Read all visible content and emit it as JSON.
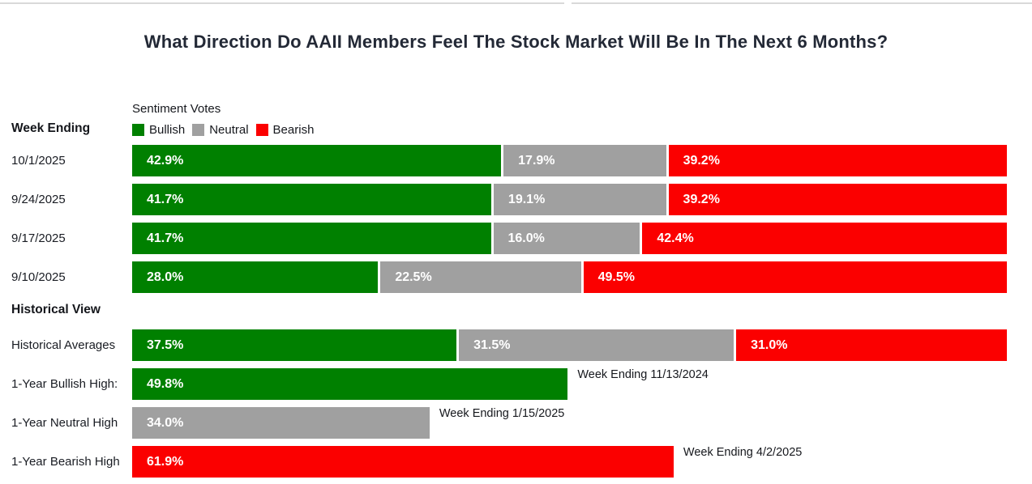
{
  "page": {
    "title": "What Direction Do AAII Members Feel The Stock Market Will Be In The Next 6 Months?"
  },
  "colors": {
    "bullish": "#008000",
    "neutral": "#a0a0a0",
    "bearish": "#fb0000"
  },
  "chart_data": {
    "type": "bar",
    "orientation": "horizontal-stacked",
    "xlim": [
      0,
      100
    ],
    "legend": {
      "title": "Sentiment Votes",
      "items": [
        {
          "label": "Bullish",
          "color": "#008000"
        },
        {
          "label": "Neutral",
          "color": "#a0a0a0"
        },
        {
          "label": "Bearish",
          "color": "#fb0000"
        }
      ]
    },
    "left_header": "Week Ending",
    "weekly": [
      {
        "date": "10/1/2025",
        "segments": [
          {
            "key": "bullish",
            "pct": 42.9,
            "label": "42.9%",
            "color": "#008000"
          },
          {
            "key": "neutral",
            "pct": 17.9,
            "label": "17.9%",
            "color": "#a0a0a0"
          },
          {
            "key": "bearish",
            "pct": 39.2,
            "label": "39.2%",
            "color": "#fb0000"
          }
        ]
      },
      {
        "date": "9/24/2025",
        "segments": [
          {
            "key": "bullish",
            "pct": 41.7,
            "label": "41.7%",
            "color": "#008000"
          },
          {
            "key": "neutral",
            "pct": 19.1,
            "label": "19.1%",
            "color": "#a0a0a0"
          },
          {
            "key": "bearish",
            "pct": 39.2,
            "label": "39.2%",
            "color": "#fb0000"
          }
        ]
      },
      {
        "date": "9/17/2025",
        "segments": [
          {
            "key": "bullish",
            "pct": 41.7,
            "label": "41.7%",
            "color": "#008000"
          },
          {
            "key": "neutral",
            "pct": 16.0,
            "label": "16.0%",
            "color": "#a0a0a0"
          },
          {
            "key": "bearish",
            "pct": 42.4,
            "label": "42.4%",
            "color": "#fb0000"
          }
        ]
      },
      {
        "date": "9/10/2025",
        "segments": [
          {
            "key": "bullish",
            "pct": 28.0,
            "label": "28.0%",
            "color": "#008000"
          },
          {
            "key": "neutral",
            "pct": 22.5,
            "label": "22.5%",
            "color": "#a0a0a0"
          },
          {
            "key": "bearish",
            "pct": 49.5,
            "label": "49.5%",
            "color": "#fb0000"
          }
        ]
      }
    ],
    "section_header": "Historical View",
    "historical_average": {
      "label": "Historical Averages",
      "segments": [
        {
          "key": "bullish",
          "pct": 37.5,
          "label": "37.5%",
          "color": "#008000"
        },
        {
          "key": "neutral",
          "pct": 31.5,
          "label": "31.5%",
          "color": "#a0a0a0"
        },
        {
          "key": "bearish",
          "pct": 31.0,
          "label": "31.0%",
          "color": "#fb0000"
        }
      ]
    },
    "highs": [
      {
        "label": "1-Year Bullish High:",
        "key": "bullish",
        "pct": 49.8,
        "value_label": "49.8%",
        "color": "#008000",
        "annotation": "Week Ending 11/13/2024"
      },
      {
        "label": "1-Year Neutral High",
        "key": "neutral",
        "pct": 34.0,
        "value_label": "34.0%",
        "color": "#a0a0a0",
        "annotation": "Week Ending 1/15/2025"
      },
      {
        "label": "1-Year Bearish High",
        "key": "bearish",
        "pct": 61.9,
        "value_label": "61.9%",
        "color": "#fb0000",
        "annotation": "Week Ending 4/2/2025"
      }
    ]
  }
}
